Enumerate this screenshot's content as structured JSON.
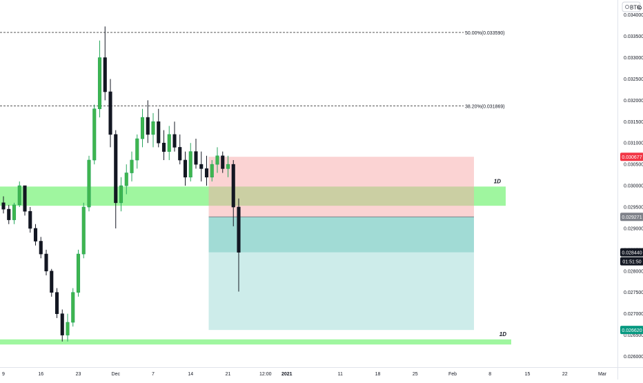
{
  "symbol_label": "BTC",
  "log_toggle": "lo",
  "chart_data": {
    "type": "candlestick",
    "timeframe_label": "1D",
    "y_axis": {
      "ylim": [
        0.02575,
        0.03435
      ],
      "ticks": [
        "0.026000",
        "0.026500",
        "0.027000",
        "0.027500",
        "0.028000",
        "0.028500",
        "0.029000",
        "0.029500",
        "0.030000",
        "0.030500",
        "0.031000",
        "0.031500",
        "0.032000",
        "0.032500",
        "0.033000",
        "0.033500",
        "0.034000"
      ],
      "tick_values": [
        0.026,
        0.0265,
        0.027,
        0.0275,
        0.028,
        0.0285,
        0.029,
        0.0295,
        0.03,
        0.0305,
        0.031,
        0.0315,
        0.032,
        0.0325,
        0.033,
        0.0335,
        0.034
      ]
    },
    "x_axis": {
      "labels": [
        "9",
        "16",
        "23",
        "Dec",
        "7",
        "14",
        "21",
        "12:00",
        "2021",
        "11",
        "18",
        "25",
        "Feb",
        "8",
        "15",
        "22",
        "Mar"
      ],
      "bold": [
        false,
        false,
        false,
        false,
        false,
        false,
        false,
        false,
        true,
        false,
        false,
        false,
        false,
        false,
        false,
        false,
        false
      ],
      "bar_index": [
        0,
        7,
        14,
        21,
        28,
        35,
        42,
        49,
        53,
        63,
        70,
        77,
        84,
        91,
        98,
        105,
        112
      ]
    },
    "fib_levels": [
      {
        "label": "50.00%(0.033590)",
        "value": 0.03359
      },
      {
        "label": "38.20%(0.031869)",
        "value": 0.031869
      }
    ],
    "zones": [
      {
        "label": "1D",
        "low": 0.02953,
        "high": 0.02998,
        "color": "#9af59a"
      },
      {
        "label": "1D",
        "low": 0.02628,
        "high": 0.0264,
        "color": "#9af59a"
      }
    ],
    "position": {
      "entry": 0.029271,
      "stop": 0.030677,
      "target": 0.02662,
      "current": 0.02844,
      "start_bar": 38,
      "end_bar": 88,
      "stop_color": "#f7a8a8",
      "target_color": "#a4dcd8"
    },
    "price_labels": [
      {
        "text": "0.030677",
        "value": 0.030677,
        "color": "#f23645"
      },
      {
        "text": "0.029271",
        "value": 0.029271,
        "color": "#7e8189"
      },
      {
        "text": "0.028440",
        "value": 0.02844,
        "color": "#131722"
      },
      {
        "text": "01:51:50",
        "value": 0.02823,
        "color": "#131722"
      },
      {
        "text": "0.026620",
        "value": 0.02662,
        "color": "#089981"
      }
    ],
    "candles": [
      [
        0.0296,
        0.02975,
        0.02935,
        0.02945
      ],
      [
        0.02945,
        0.02955,
        0.0291,
        0.0292
      ],
      [
        0.0292,
        0.0296,
        0.0291,
        0.02955
      ],
      [
        0.02955,
        0.0301,
        0.0295,
        0.03
      ],
      [
        0.03,
        0.02995,
        0.0293,
        0.0294
      ],
      [
        0.0294,
        0.0295,
        0.0289,
        0.029
      ],
      [
        0.029,
        0.0291,
        0.0286,
        0.0287
      ],
      [
        0.0287,
        0.0288,
        0.0283,
        0.0284
      ],
      [
        0.0284,
        0.0285,
        0.0279,
        0.028
      ],
      [
        0.028,
        0.02805,
        0.0274,
        0.0275
      ],
      [
        0.0275,
        0.0276,
        0.0269,
        0.027
      ],
      [
        0.027,
        0.0271,
        0.02635,
        0.0265
      ],
      [
        0.0265,
        0.027,
        0.02635,
        0.0268
      ],
      [
        0.0268,
        0.0276,
        0.0267,
        0.0275
      ],
      [
        0.0275,
        0.0285,
        0.0274,
        0.0284
      ],
      [
        0.0284,
        0.0296,
        0.0283,
        0.0295
      ],
      [
        0.0295,
        0.0307,
        0.0294,
        0.0306
      ],
      [
        0.0306,
        0.0319,
        0.0305,
        0.0318
      ],
      [
        0.0318,
        0.0334,
        0.0316,
        0.033
      ],
      [
        0.033,
        0.03373,
        0.032,
        0.0322
      ],
      [
        0.0322,
        0.0325,
        0.0309,
        0.0312
      ],
      [
        0.0312,
        0.0313,
        0.029,
        0.0296
      ],
      [
        0.0296,
        0.0302,
        0.0294,
        0.03
      ],
      [
        0.03,
        0.0305,
        0.0298,
        0.0303
      ],
      [
        0.0303,
        0.0308,
        0.0301,
        0.0306
      ],
      [
        0.0306,
        0.0312,
        0.0304,
        0.0311
      ],
      [
        0.0311,
        0.0318,
        0.0309,
        0.0316
      ],
      [
        0.0316,
        0.032,
        0.031,
        0.0312
      ],
      [
        0.0312,
        0.0317,
        0.0309,
        0.0315
      ],
      [
        0.0315,
        0.0318,
        0.0309,
        0.031
      ],
      [
        0.031,
        0.0313,
        0.0306,
        0.0308
      ],
      [
        0.0308,
        0.0314,
        0.0306,
        0.0312
      ],
      [
        0.0312,
        0.0315,
        0.0308,
        0.0309
      ],
      [
        0.0309,
        0.0312,
        0.0305,
        0.0306
      ],
      [
        0.0306,
        0.0308,
        0.03,
        0.0302
      ],
      [
        0.0302,
        0.031,
        0.0301,
        0.0308
      ],
      [
        0.0308,
        0.0311,
        0.0304,
        0.0305
      ],
      [
        0.0305,
        0.0308,
        0.0301,
        0.0304
      ],
      [
        0.0304,
        0.0307,
        0.03,
        0.0302
      ],
      [
        0.0302,
        0.0306,
        0.0301,
        0.0305
      ],
      [
        0.0305,
        0.0309,
        0.0303,
        0.0307
      ],
      [
        0.0307,
        0.0308,
        0.0303,
        0.0304
      ],
      [
        0.0304,
        0.0307,
        0.0302,
        0.0305
      ],
      [
        0.0305,
        0.0306,
        0.02905,
        0.0295
      ],
      [
        0.0295,
        0.0297,
        0.02752,
        0.02844
      ]
    ]
  }
}
